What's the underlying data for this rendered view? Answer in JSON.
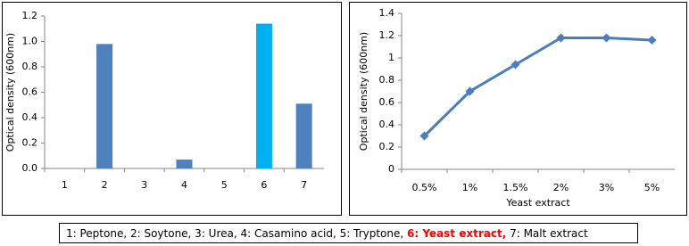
{
  "chart_data": [
    {
      "type": "bar",
      "y_label": "Optical density (600nm)",
      "categories": [
        "1",
        "2",
        "3",
        "4",
        "5",
        "6",
        "7"
      ],
      "values": [
        0,
        0.98,
        0,
        0.07,
        0,
        1.14,
        0.51
      ],
      "colors": [
        "#4f81bd",
        "#4f81bd",
        "#4f81bd",
        "#4f81bd",
        "#4f81bd",
        "#00b0f0",
        "#4f81bd"
      ],
      "ylim": [
        0,
        1.2
      ],
      "yticks": [
        {
          "value": 0,
          "label": "0.0"
        },
        {
          "value": 0.2,
          "label": "0.2"
        },
        {
          "value": 0.4,
          "label": "0.4"
        },
        {
          "value": 0.6,
          "label": "0.6"
        },
        {
          "value": 0.8,
          "label": "0.8"
        },
        {
          "value": 1,
          "label": "1.0"
        },
        {
          "value": 1.2,
          "label": "1.2"
        }
      ],
      "grid": false
    },
    {
      "type": "line",
      "y_label": "Optical density (600nm)",
      "x_label": "Yeast extract",
      "categories": [
        "0.5%",
        "1%",
        "1.5%",
        "2%",
        "3%",
        "5%"
      ],
      "values": [
        0.3,
        0.7,
        0.94,
        1.18,
        1.18,
        1.16
      ],
      "color": "#4a7ebb",
      "ylim": [
        0,
        1.4
      ],
      "yticks": [
        0,
        0.2,
        0.4,
        0.6,
        0.8,
        1,
        1.2,
        1.4
      ],
      "grid": false
    }
  ],
  "caption": {
    "parts": [
      "1: Peptone, 2: Soytone, 3: Urea, 4: Casamino acid, 5: Tryptone, ",
      "6: Yeast extract,",
      " 7: Malt extract"
    ],
    "highlight_part": 1,
    "highlight_color": "#ff0000"
  }
}
